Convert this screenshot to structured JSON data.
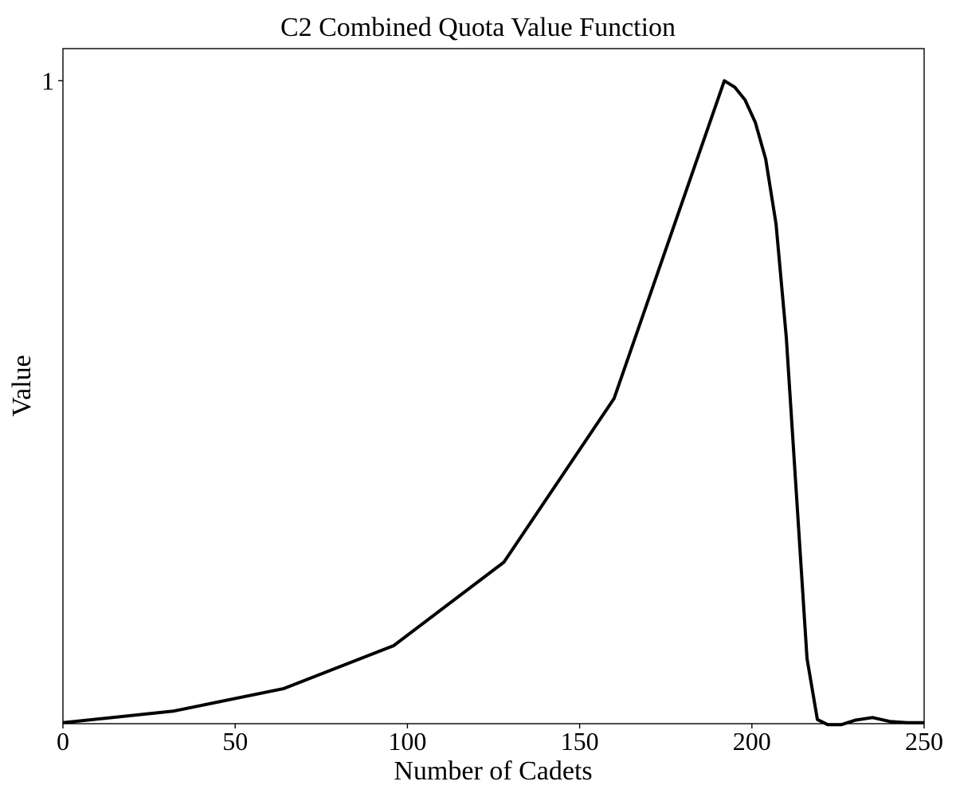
{
  "chart_data": {
    "type": "line",
    "title": "C2 Combined Quota Value Function",
    "xlabel": "Number of Cadets",
    "ylabel": "Value",
    "xlim": [
      0,
      250
    ],
    "ylim": [
      -0.0015,
      1.05
    ],
    "xticks": [
      0,
      50,
      100,
      150,
      200,
      250
    ],
    "xtick_labels": [
      "0",
      "50",
      "100",
      "150",
      "200",
      "250"
    ],
    "yticks": [
      1
    ],
    "ytick_labels": [
      "1"
    ],
    "grid": false,
    "legend": "none",
    "line_color": "#000000",
    "series": [
      {
        "x": [
          0,
          32,
          64,
          96,
          128,
          160,
          192,
          195,
          198,
          201,
          204,
          207,
          210,
          213,
          216,
          219,
          222,
          226,
          230,
          235,
          240,
          245,
          250
        ],
        "y": [
          0.0,
          0.018,
          0.053,
          0.12,
          0.25,
          0.505,
          1.0,
          0.99,
          0.97,
          0.935,
          0.878,
          0.777,
          0.6,
          0.35,
          0.1,
          0.005,
          -0.003,
          -0.003,
          0.004,
          0.008,
          0.002,
          0.0,
          0.0
        ]
      }
    ]
  }
}
